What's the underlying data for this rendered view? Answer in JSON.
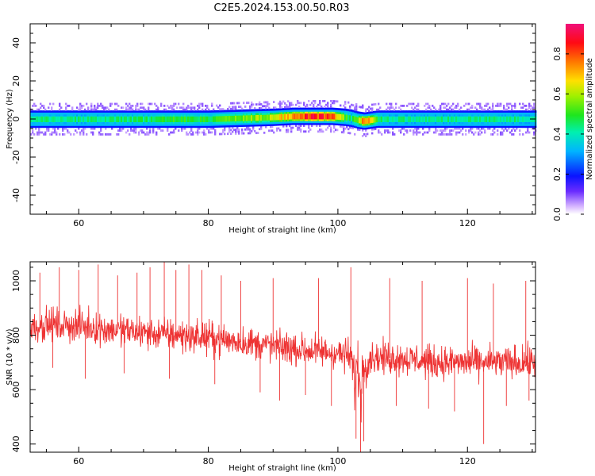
{
  "title": "C2E5.2024.153.00.50.R03",
  "chart_data": [
    {
      "type": "heatmap",
      "xlabel": "Height of straight line (km)",
      "ylabel": "Frequency (Hz)",
      "xlim": [
        52.5,
        130.5
      ],
      "ylim": [
        -50,
        50
      ],
      "xticks": [
        60,
        80,
        100,
        120
      ],
      "yticks": [
        -40,
        -20,
        0,
        20,
        40
      ],
      "xtick_labels": [
        "60",
        "80",
        "100",
        "120"
      ],
      "ytick_labels": [
        "-40",
        "-20",
        "0",
        "20",
        "40"
      ],
      "colorbar": {
        "label": "Normalized spectral amplitude",
        "range": [
          0,
          0.95
        ],
        "ticks": [
          0.0,
          0.2,
          0.4,
          0.6,
          0.8
        ],
        "tick_labels": [
          "0.0",
          "0.2",
          "0.4",
          "0.6",
          "0.8"
        ],
        "colormap": "rainbow (violet to red to magenta)"
      },
      "profile": {
        "description": "signal band centered near 0 Hz, width about +/-4 Hz",
        "x": [
          52.5,
          60,
          70,
          75,
          80,
          85,
          90,
          93,
          96,
          99,
          101,
          102,
          103,
          104,
          105,
          106,
          108,
          112,
          120,
          130.5
        ],
        "peak_amplitude": [
          0.45,
          0.45,
          0.47,
          0.52,
          0.5,
          0.58,
          0.63,
          0.8,
          0.88,
          0.84,
          0.55,
          0.45,
          0.6,
          0.85,
          0.72,
          0.5,
          0.45,
          0.45,
          0.45,
          0.45
        ],
        "center_frequency_hz": [
          0,
          0,
          0,
          0,
          0,
          0.5,
          1,
          1.5,
          1.5,
          1.5,
          1,
          0.5,
          -0.5,
          -1,
          -0.5,
          0,
          0,
          0,
          0,
          0
        ]
      }
    },
    {
      "type": "line",
      "xlabel": "Height of straight line (km)",
      "ylabel": "SNR (10 * v/v)",
      "xlim": [
        52.5,
        130.5
      ],
      "ylim": [
        370,
        1070
      ],
      "xticks": [
        60,
        80,
        100,
        120
      ],
      "yticks": [
        400,
        600,
        800,
        1000
      ],
      "xtick_labels": [
        "60",
        "80",
        "100",
        "120"
      ],
      "ytick_labels": [
        "400",
        "600",
        "800",
        "1000"
      ],
      "series": [
        {
          "color": "#ee3333",
          "x": [
            52.5,
            55,
            60,
            65,
            70,
            75,
            80,
            85,
            90,
            95,
            100,
            102,
            102.5,
            103,
            103.5,
            104,
            105,
            110,
            115,
            120,
            125,
            130.5
          ],
          "mean": [
            830,
            840,
            835,
            820,
            810,
            800,
            790,
            775,
            760,
            745,
            735,
            720,
            640,
            690,
            600,
            690,
            720,
            715,
            700,
            700,
            700,
            700
          ],
          "spread": [
            55,
            55,
            55,
            55,
            55,
            55,
            55,
            55,
            55,
            55,
            55,
            60,
            110,
            80,
            140,
            80,
            55,
            55,
            55,
            55,
            55,
            55
          ],
          "spikes": [
            {
              "x": 54,
              "y": 1030
            },
            {
              "x": 57,
              "y": 1050
            },
            {
              "x": 60,
              "y": 1040
            },
            {
              "x": 63,
              "y": 1060
            },
            {
              "x": 66,
              "y": 1020
            },
            {
              "x": 69,
              "y": 1030
            },
            {
              "x": 71,
              "y": 1050
            },
            {
              "x": 73.2,
              "y": 1070
            },
            {
              "x": 75,
              "y": 1040
            },
            {
              "x": 77,
              "y": 1060
            },
            {
              "x": 79,
              "y": 1040
            },
            {
              "x": 82,
              "y": 1020
            },
            {
              "x": 85,
              "y": 1000
            },
            {
              "x": 90,
              "y": 1010
            },
            {
              "x": 97,
              "y": 1010
            },
            {
              "x": 102,
              "y": 1050
            },
            {
              "x": 108,
              "y": 1010
            },
            {
              "x": 113,
              "y": 1000
            },
            {
              "x": 120,
              "y": 1010
            },
            {
              "x": 124,
              "y": 990
            },
            {
              "x": 129,
              "y": 1000
            },
            {
              "x": 56,
              "y": 680
            },
            {
              "x": 61,
              "y": 640
            },
            {
              "x": 67,
              "y": 660
            },
            {
              "x": 74,
              "y": 640
            },
            {
              "x": 81,
              "y": 620
            },
            {
              "x": 88,
              "y": 590
            },
            {
              "x": 91,
              "y": 560
            },
            {
              "x": 95,
              "y": 580
            },
            {
              "x": 99,
              "y": 540
            },
            {
              "x": 102.8,
              "y": 420
            },
            {
              "x": 103.5,
              "y": 370
            },
            {
              "x": 104,
              "y": 410
            },
            {
              "x": 109,
              "y": 540
            },
            {
              "x": 114,
              "y": 530
            },
            {
              "x": 118,
              "y": 520
            },
            {
              "x": 122.5,
              "y": 400
            },
            {
              "x": 126,
              "y": 540
            },
            {
              "x": 129.5,
              "y": 560
            }
          ]
        }
      ]
    }
  ]
}
